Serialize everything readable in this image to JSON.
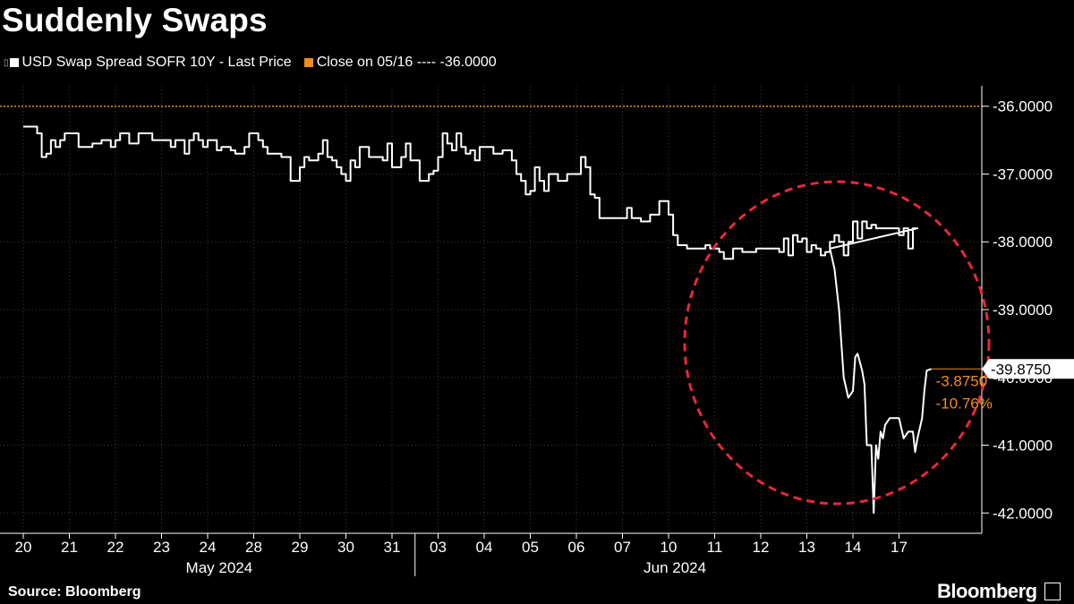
{
  "chart_data": {
    "type": "line",
    "title": "Suddenly Swaps",
    "ylim": [
      -42.3,
      -35.7
    ],
    "y_ticks": [
      "-36.0000",
      "-37.0000",
      "-38.0000",
      "-39.0000",
      "-40.0000",
      "-41.0000",
      "-42.0000"
    ],
    "y_tick_values": [
      -36,
      -37,
      -38,
      -39,
      -40,
      -41,
      -42
    ],
    "x_ticks": [
      "20",
      "21",
      "22",
      "23",
      "24",
      "28",
      "29",
      "30",
      "31",
      "03",
      "04",
      "05",
      "06",
      "07",
      "10",
      "11",
      "12",
      "13",
      "14",
      "17"
    ],
    "x_groups": [
      {
        "label": "May 2024"
      },
      {
        "label": "Jun 2024"
      }
    ],
    "grid": true,
    "legend_position": "top-left",
    "series": [
      {
        "name": "USD Swap Spread SOFR 10Y - Last Price",
        "color": "#ffffff",
        "x": [
          0,
          0.1,
          0.2,
          0.3,
          0.35,
          0.4,
          0.5,
          0.6,
          0.7,
          0.8,
          0.9,
          1.0,
          1.1,
          1.2,
          1.3,
          1.4,
          1.5,
          1.6,
          1.7,
          1.8,
          1.9,
          2.0,
          2.1,
          2.2,
          2.3,
          2.4,
          2.5,
          2.6,
          2.7,
          2.8,
          2.9,
          3.0,
          3.1,
          3.2,
          3.3,
          3.4,
          3.5,
          3.6,
          3.7,
          3.8,
          3.9,
          4.0,
          4.1,
          4.2,
          4.3,
          4.4,
          4.5,
          4.6,
          4.7,
          4.8,
          4.9,
          5.0,
          5.1,
          5.2,
          5.3,
          5.4,
          5.5,
          5.6,
          5.7,
          5.8,
          5.9,
          6.0,
          6.1,
          6.2,
          6.3,
          6.4,
          6.5,
          6.6,
          6.7,
          6.8,
          6.9,
          7.0,
          7.1,
          7.2,
          7.3,
          7.4,
          7.5,
          7.6,
          7.7,
          7.8,
          7.9,
          8.0,
          8.1,
          8.2,
          8.3,
          8.4,
          8.5,
          8.6,
          8.7,
          8.8,
          8.9,
          9.0,
          9.1,
          9.2,
          9.3,
          9.4,
          9.5,
          9.6,
          9.7,
          9.8,
          9.9,
          10.0,
          10.1,
          10.2,
          10.3,
          10.4,
          10.5,
          10.6,
          10.7,
          10.8,
          10.9,
          11.0,
          11.1,
          11.2,
          11.3,
          11.4,
          11.5,
          11.6,
          11.7,
          11.8,
          11.9,
          12.0,
          12.1,
          12.2,
          12.3,
          12.4,
          12.5,
          12.6,
          12.7,
          12.8,
          12.9,
          13.0,
          13.1,
          13.2,
          13.3,
          13.4,
          13.5,
          13.6,
          13.7,
          13.8,
          13.9,
          14.0,
          14.1,
          14.2,
          14.3,
          14.4,
          14.5,
          14.6,
          14.7,
          14.8,
          14.9,
          15.0,
          15.1,
          15.2,
          15.3,
          15.4,
          15.5,
          15.6,
          15.7,
          15.8,
          15.9,
          16.0,
          16.1,
          16.2,
          16.3,
          16.4,
          16.5,
          16.6,
          16.7,
          16.8,
          16.9,
          17.0,
          17.1,
          17.2,
          17.3,
          17.4,
          17.5,
          17.6,
          17.7,
          17.8,
          17.9,
          18.0,
          18.1,
          18.2,
          18.3,
          18.4,
          18.5,
          18.6,
          18.7,
          18.8,
          18.9,
          19.0,
          19.1,
          19.2,
          19.3,
          19.4
        ],
        "values": [
          -36.3,
          -36.3,
          -36.3,
          -36.4,
          -36.4,
          -36.75,
          -36.7,
          -36.5,
          -36.6,
          -36.5,
          -36.4,
          -36.4,
          -36.4,
          -36.6,
          -36.6,
          -36.6,
          -36.55,
          -36.55,
          -36.5,
          -36.5,
          -36.6,
          -36.5,
          -36.4,
          -36.4,
          -36.55,
          -36.55,
          -36.4,
          -36.4,
          -36.4,
          -36.5,
          -36.5,
          -36.5,
          -36.5,
          -36.6,
          -36.5,
          -36.5,
          -36.7,
          -36.5,
          -36.4,
          -36.5,
          -36.6,
          -36.5,
          -36.5,
          -36.65,
          -36.6,
          -36.6,
          -36.65,
          -36.7,
          -36.7,
          -36.6,
          -36.4,
          -36.4,
          -36.5,
          -36.6,
          -36.7,
          -36.7,
          -36.7,
          -36.75,
          -36.75,
          -37.1,
          -37.1,
          -36.9,
          -36.75,
          -36.8,
          -36.8,
          -36.7,
          -36.5,
          -36.75,
          -36.8,
          -36.9,
          -37.0,
          -37.1,
          -36.8,
          -36.9,
          -36.6,
          -36.6,
          -36.75,
          -36.75,
          -36.75,
          -36.8,
          -36.55,
          -36.9,
          -36.9,
          -36.75,
          -36.55,
          -36.8,
          -36.8,
          -37.1,
          -37.1,
          -37.0,
          -36.95,
          -36.75,
          -36.4,
          -36.55,
          -36.65,
          -36.4,
          -36.6,
          -36.7,
          -36.65,
          -36.8,
          -36.6,
          -36.6,
          -36.6,
          -36.7,
          -36.7,
          -36.65,
          -36.65,
          -36.8,
          -37.0,
          -37.1,
          -37.3,
          -37.25,
          -36.9,
          -37.1,
          -37.25,
          -37.0,
          -37.0,
          -37.1,
          -37.1,
          -37.0,
          -37.0,
          -37.0,
          -36.75,
          -36.9,
          -37.3,
          -37.35,
          -37.65,
          -37.65,
          -37.65,
          -37.65,
          -37.65,
          -37.65,
          -37.5,
          -37.65,
          -37.65,
          -37.7,
          -37.7,
          -37.6,
          -37.6,
          -37.4,
          -37.4,
          -37.6,
          -37.9,
          -38.05,
          -38.05,
          -38.1,
          -38.1,
          -38.1,
          -38.1,
          -38.05,
          -38.1,
          -38.1,
          -38.15,
          -38.25,
          -38.25,
          -38.1,
          -38.1,
          -38.15,
          -38.15,
          -38.15,
          -38.1,
          -38.1,
          -38.1,
          -38.1,
          -38.1,
          -38.15,
          -37.95,
          -38.2,
          -37.9,
          -38.0,
          -37.95,
          -38.15,
          -38.05,
          -38.1,
          -38.2,
          -38.15,
          -38.0,
          -37.9,
          -38.0,
          -38.2,
          -38.0,
          -37.7,
          -37.95,
          -37.7,
          -37.8,
          -37.75,
          -37.8,
          -37.8,
          -37.8,
          -37.8,
          -37.8,
          -37.9,
          -37.8,
          -38.1,
          -37.8,
          -37.8
        ]
      },
      {
        "name": "Close on 05/16 ---- -36.0000",
        "color": "#f08c1e",
        "constant": -36.0
      }
    ],
    "tail": {
      "x": [
        17.5,
        17.6,
        17.7,
        17.8,
        17.9,
        18.0,
        18.05,
        18.1,
        18.2,
        18.25,
        18.3,
        18.4,
        18.45,
        18.5,
        18.55,
        18.6,
        18.65,
        18.7,
        18.8,
        18.9,
        19.0,
        19.1,
        19.2,
        19.3,
        19.35,
        19.4,
        19.5,
        19.55,
        19.6,
        19.7
      ],
      "values": [
        -38.1,
        -38.4,
        -39.0,
        -40.0,
        -40.3,
        -40.2,
        -39.7,
        -39.65,
        -39.9,
        -40.1,
        -41.0,
        -41.0,
        -42.0,
        -41.0,
        -41.2,
        -40.8,
        -40.9,
        -40.7,
        -40.6,
        -40.6,
        -40.6,
        -40.9,
        -40.8,
        -40.8,
        -41.1,
        -40.9,
        -40.6,
        -40.2,
        -39.9,
        -39.875
      ]
    },
    "last_value_label": "-39.8750",
    "annotations": [
      {
        "text": "-3.8750",
        "color": "#f08c1e"
      },
      {
        "text": "-10.76%",
        "color": "#f08c1e"
      }
    ],
    "highlight": {
      "shape": "dashed-circle",
      "color": "#e8283c"
    }
  },
  "legend": {
    "series_label": "USD Swap Spread SOFR 10Y - Last Price",
    "close_label": "Close on 05/16 ---- -36.0000"
  },
  "footer": {
    "source": "Source: Bloomberg",
    "brand": "Bloomberg"
  }
}
